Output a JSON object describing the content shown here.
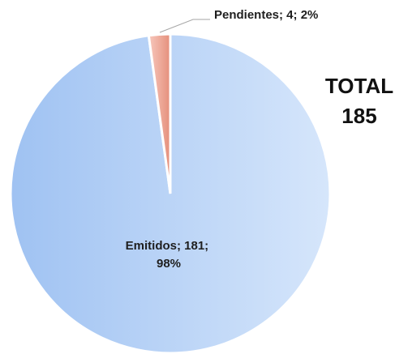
{
  "chart_data": {
    "type": "pie",
    "slices": [
      {
        "name": "Pendientes",
        "value": 4,
        "percent": "2%",
        "label": "Pendientes; 4; 2%",
        "color_start": "#f7c8bd",
        "color_end": "#e58f7b"
      },
      {
        "name": "Emitidos",
        "value": 181,
        "percent": "98%",
        "label_lines": [
          "Emitidos; 181;",
          "98%"
        ],
        "color_start": "#9fc2f2",
        "color_end": "#d6e6fb"
      }
    ],
    "total": {
      "label": "TOTAL",
      "value": "185"
    }
  }
}
